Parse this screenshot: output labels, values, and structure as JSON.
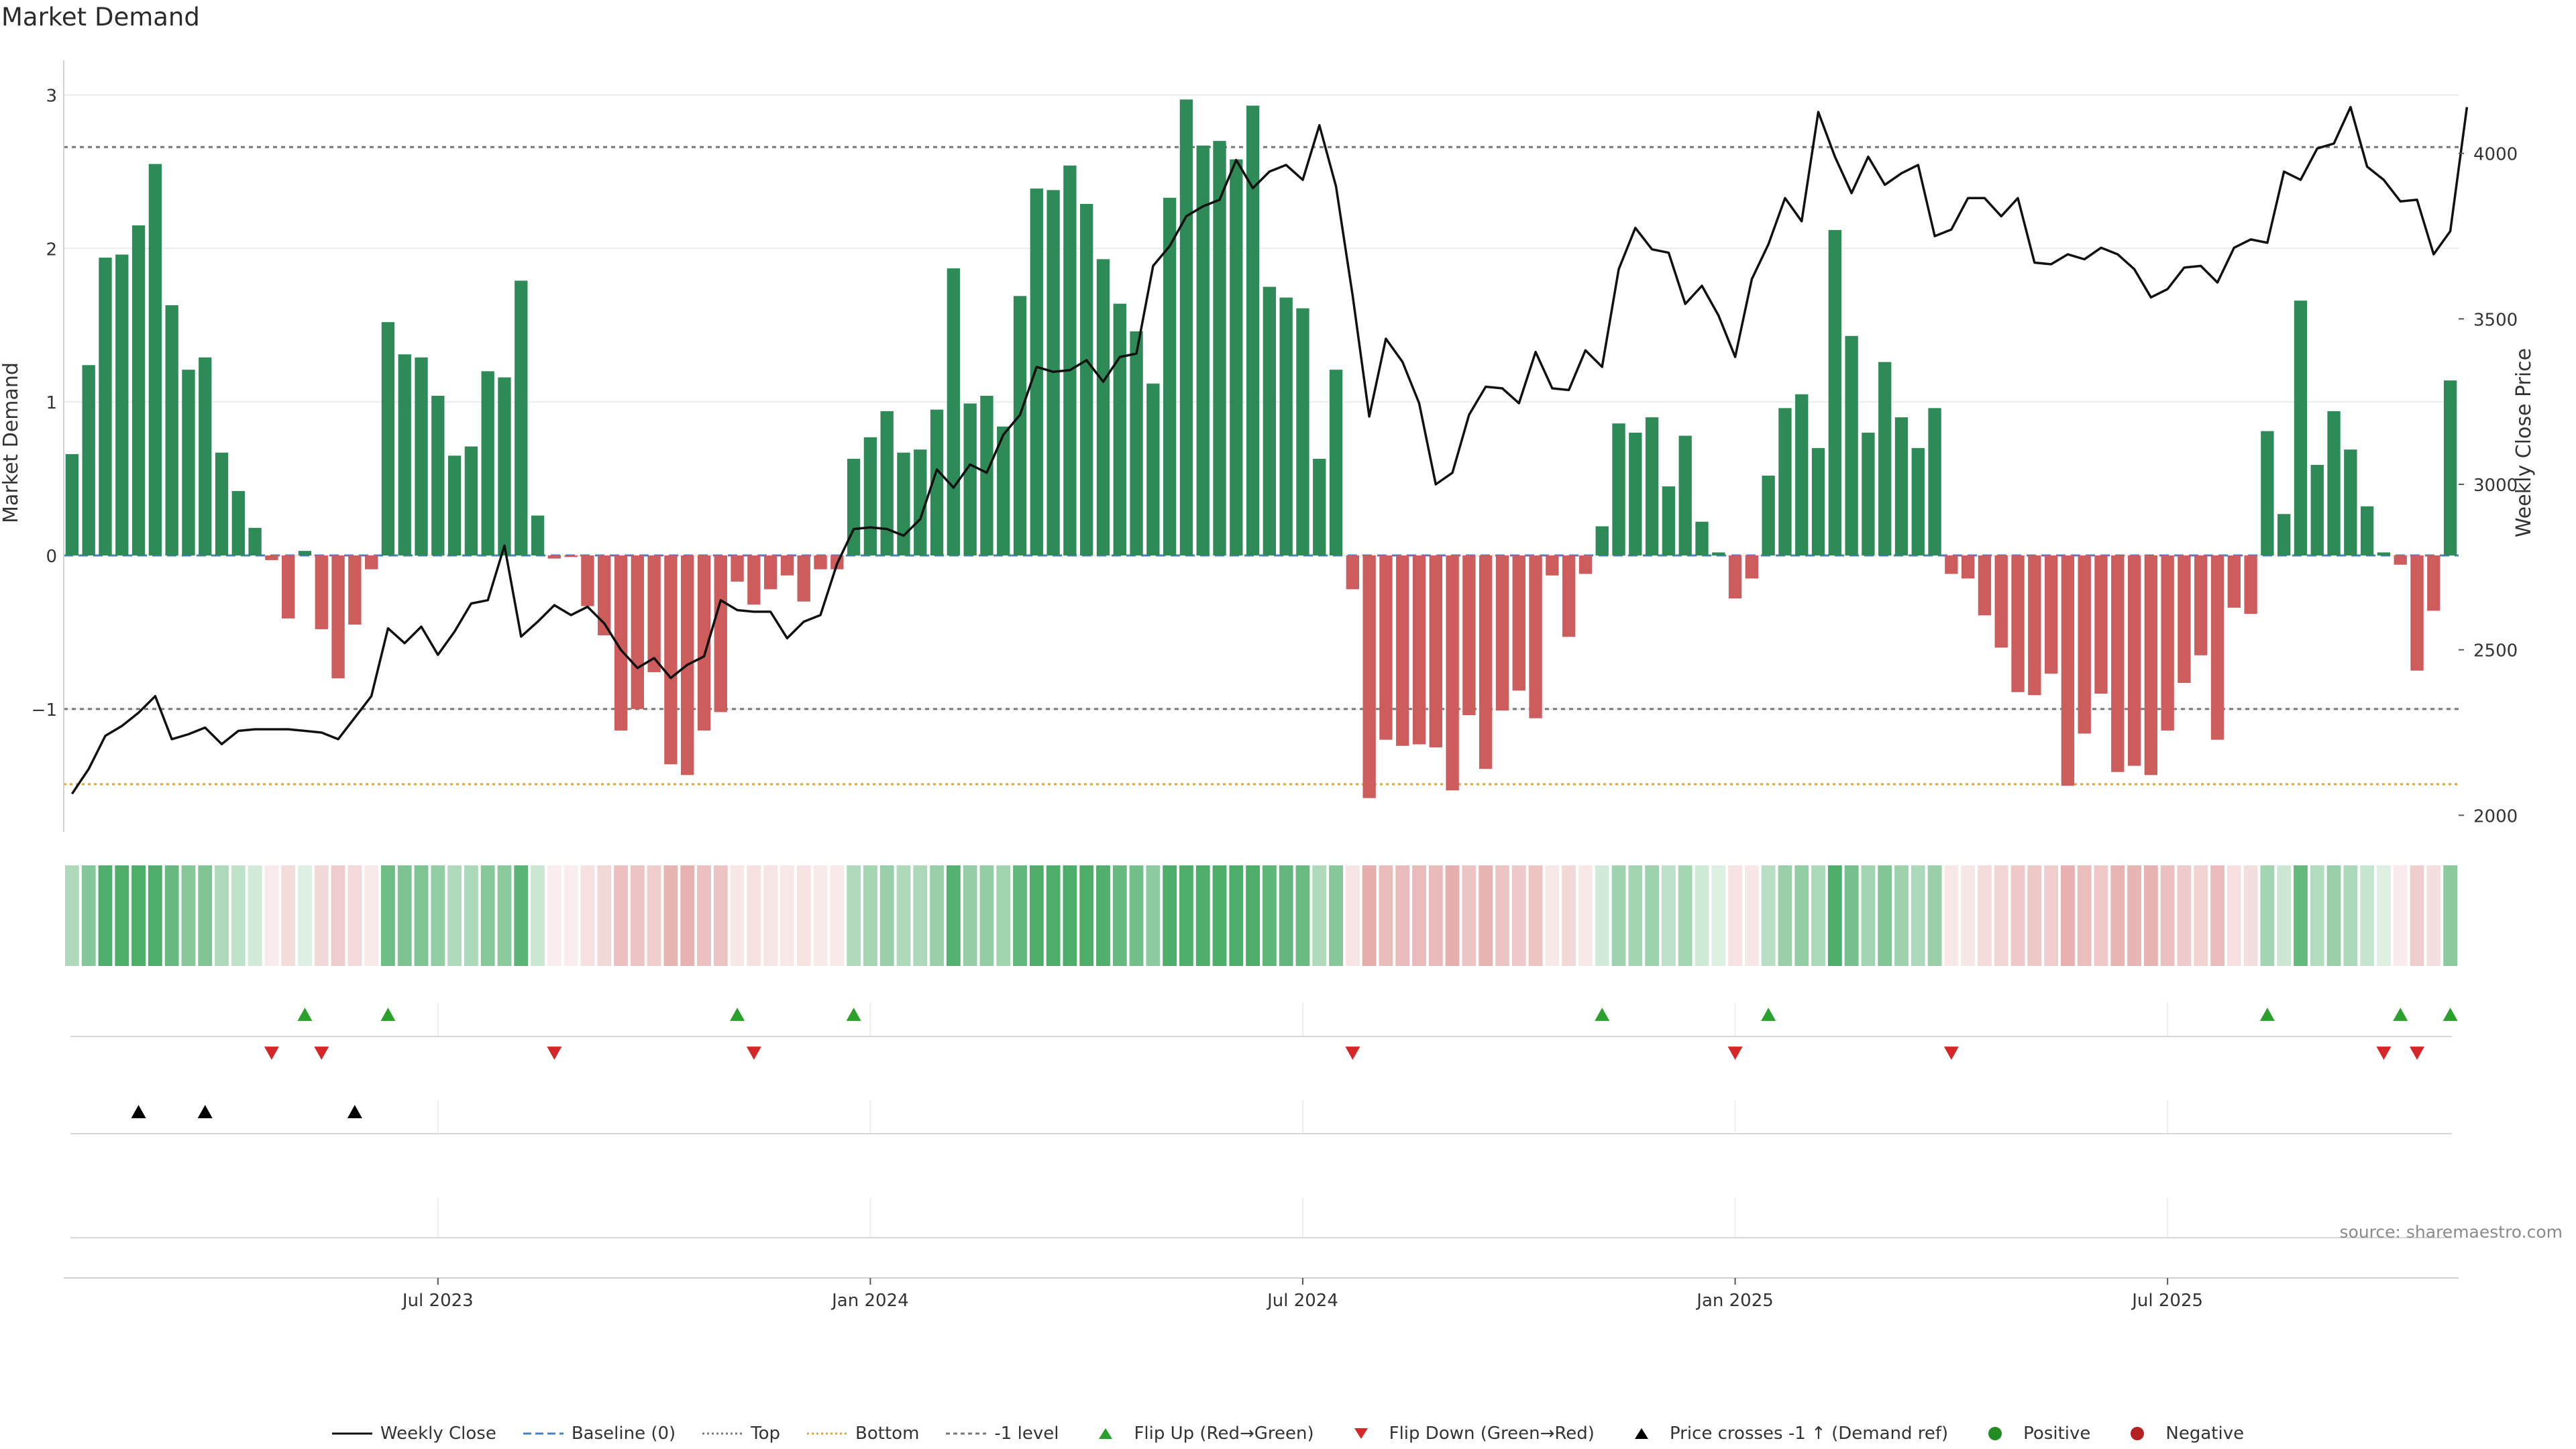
{
  "title": "Market Demand",
  "source": "source: sharemaestro.com",
  "colors": {
    "positive": "#2e8b57",
    "negative": "#cd5c5c",
    "price": "#111111",
    "flip_up": "#2ca02c",
    "flip_down": "#d62728",
    "cross": "#000000",
    "top_line": "#777777",
    "bottom_line": "#d9a441",
    "baseline": "#4a7fbf"
  },
  "chart_data": {
    "type": "bar",
    "title": "Market Demand",
    "ylabel": "Market Demand",
    "y2label": "Weekly Close Price",
    "ylim": [
      -1.8,
      3.05
    ],
    "y2lim": [
      1950,
      4200
    ],
    "yticks": [
      "3",
      "2",
      "1",
      "0",
      "−1"
    ],
    "y2ticks": [
      "4000",
      "3500",
      "3000",
      "2500",
      "2000"
    ],
    "xticks": [
      "Jul 2023",
      "Jan 2024",
      "Jul 2024",
      "Jan 2025",
      "Jul 2025"
    ],
    "xtick_index": [
      22,
      48,
      74,
      100,
      126
    ],
    "reference_lines": {
      "top": 2.66,
      "bottom": -1.49,
      "minus_one": -1.0,
      "baseline": 0
    },
    "demand": [
      0.66,
      1.24,
      1.94,
      1.96,
      2.15,
      2.55,
      1.63,
      1.21,
      1.29,
      0.67,
      0.42,
      0.18,
      -0.03,
      -0.41,
      0.03,
      -0.48,
      -0.8,
      -0.45,
      -0.09,
      1.52,
      1.31,
      1.29,
      1.04,
      0.65,
      0.71,
      1.2,
      1.16,
      1.79,
      0.26,
      -0.02,
      -0.01,
      -0.33,
      -0.52,
      -1.14,
      -1.0,
      -0.76,
      -1.36,
      -1.43,
      -1.14,
      -1.02,
      -0.17,
      -0.32,
      -0.22,
      -0.13,
      -0.3,
      -0.09,
      -0.09,
      0.63,
      0.77,
      0.94,
      0.67,
      0.69,
      0.95,
      1.87,
      0.99,
      1.04,
      0.84,
      1.69,
      2.39,
      2.38,
      2.54,
      2.29,
      1.93,
      1.64,
      1.46,
      1.12,
      2.33,
      2.97,
      2.67,
      2.7,
      2.58,
      2.93,
      1.75,
      1.68,
      1.61,
      0.63,
      1.21,
      -0.22,
      -1.58,
      -1.2,
      -1.24,
      -1.23,
      -1.25,
      -1.53,
      -1.04,
      -1.39,
      -1.01,
      -0.88,
      -1.06,
      -0.13,
      -0.53,
      -0.12,
      0.19,
      0.86,
      0.8,
      0.9,
      0.45,
      0.78,
      0.22,
      0.02,
      -0.28,
      -0.15,
      0.52,
      0.96,
      1.05,
      0.7,
      2.12,
      1.43,
      0.8,
      1.26,
      0.9,
      0.7,
      0.96,
      -0.12,
      -0.15,
      -0.39,
      -0.6,
      -0.89,
      -0.91,
      -0.77,
      -1.5,
      -1.16,
      -0.9,
      -1.41,
      -1.37,
      -1.43,
      -1.14,
      -0.83,
      -0.65,
      -1.2,
      -0.34,
      -0.38,
      0.81,
      0.27,
      1.66,
      0.59,
      0.94,
      0.69,
      0.32,
      0.02,
      -0.06,
      -0.75,
      -0.36,
      1.14
    ],
    "price": [
      2065,
      2140,
      2240,
      2270,
      2310,
      2360,
      2230,
      2245,
      2265,
      2215,
      2255,
      2260,
      2260,
      2260,
      2255,
      2250,
      2230,
      2295,
      2360,
      2565,
      2520,
      2570,
      2485,
      2555,
      2640,
      2650,
      2815,
      2540,
      2585,
      2635,
      2605,
      2630,
      2580,
      2500,
      2445,
      2475,
      2415,
      2455,
      2480,
      2650,
      2620,
      2615,
      2615,
      2535,
      2585,
      2605,
      2760,
      2865,
      2870,
      2865,
      2845,
      2895,
      3045,
      2990,
      3060,
      3035,
      3150,
      3210,
      3355,
      3340,
      3345,
      3375,
      3310,
      3385,
      3395,
      3660,
      3720,
      3810,
      3840,
      3860,
      3980,
      3895,
      3945,
      3965,
      3920,
      4085,
      3900,
      3570,
      3205,
      3440,
      3370,
      3245,
      3000,
      3035,
      3210,
      3295,
      3290,
      3245,
      3400,
      3290,
      3285,
      3405,
      3355,
      3650,
      3775,
      3710,
      3700,
      3545,
      3600,
      3510,
      3385,
      3620,
      3725,
      3865,
      3795,
      4125,
      3990,
      3880,
      3990,
      3905,
      3940,
      3965,
      3750,
      3770,
      3865,
      3865,
      3810,
      3865,
      3670,
      3665,
      3695,
      3680,
      3715,
      3695,
      3650,
      3565,
      3590,
      3655,
      3660,
      3610,
      3715,
      3740,
      3730,
      3945,
      3920,
      4015,
      4030,
      4140,
      3960,
      3920,
      3855,
      3860,
      3695,
      3765,
      4140
    ],
    "flip_up_index": [
      14,
      19,
      40,
      47,
      92,
      102,
      132,
      140,
      143
    ],
    "flip_down_index": [
      12,
      15,
      29,
      41,
      77,
      100,
      113,
      139,
      141
    ],
    "price_cross_index": [
      4,
      8,
      17
    ]
  },
  "legend": [
    {
      "key": "line",
      "label": "Weekly Close"
    },
    {
      "key": "dash-blue",
      "label": "Baseline (0)"
    },
    {
      "key": "dot-gray",
      "label": "Top"
    },
    {
      "key": "dot-orange",
      "label": "Bottom"
    },
    {
      "key": "dash-gray",
      "label": "-1 level"
    },
    {
      "key": "tri-up-green",
      "label": "Flip Up (Red→Green)"
    },
    {
      "key": "tri-down-red",
      "label": "Flip Down (Green→Red)"
    },
    {
      "key": "tri-up-black",
      "label": "Price crosses -1 ↑ (Demand ref)"
    },
    {
      "key": "dot-green",
      "label": "Positive"
    },
    {
      "key": "dot-red",
      "label": "Negative"
    }
  ]
}
